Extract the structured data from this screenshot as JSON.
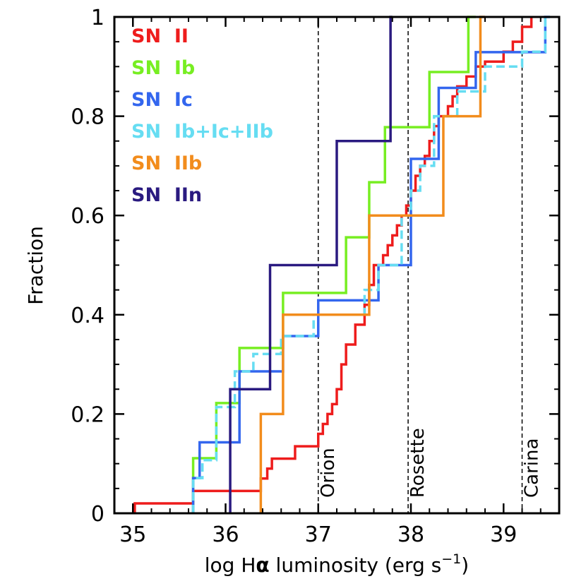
{
  "chart_data": {
    "type": "line",
    "subtype": "cumulative-step",
    "xlabel_prefix": "log H",
    "xlabel_symbol": "α",
    "xlabel_units": " luminosity (erg s",
    "xlabel_sup": "−1",
    "xlabel_close": ")",
    "ylabel": "Fraction",
    "xlim": [
      34.8,
      39.6
    ],
    "ylim": [
      0,
      1
    ],
    "x_ticks": [
      35,
      36,
      37,
      38,
      39
    ],
    "x_tick_labels": [
      "35",
      "36",
      "37",
      "38",
      "39"
    ],
    "y_ticks": [
      0,
      0.2,
      0.4,
      0.6,
      0.8,
      1
    ],
    "y_tick_labels": [
      "0",
      "0.2",
      "0.4",
      "0.6",
      "0.8",
      "1"
    ],
    "reference_lines": [
      {
        "name": "Orion",
        "x": 37.0
      },
      {
        "name": "Rosette",
        "x": 37.97
      },
      {
        "name": "Carina",
        "x": 39.2
      }
    ],
    "legend_position": "top-left",
    "series": [
      {
        "name": "SN  II",
        "color": "#ee1c1c",
        "dashed": false,
        "x": [
          35.02,
          35.65,
          36.38,
          36.45,
          36.5,
          36.75,
          37.0,
          37.05,
          37.1,
          37.15,
          37.2,
          37.25,
          37.3,
          37.4,
          37.5,
          37.55,
          37.6,
          37.7,
          37.75,
          37.8,
          37.85,
          37.9,
          37.95,
          38.0,
          38.05,
          38.1,
          38.15,
          38.2,
          38.25,
          38.3,
          38.4,
          38.45,
          38.5,
          38.6,
          38.7,
          38.8,
          39.0,
          39.1,
          39.2,
          39.3
        ],
        "y": [
          0.02,
          0.045,
          0.07,
          0.09,
          0.11,
          0.135,
          0.16,
          0.18,
          0.2,
          0.22,
          0.25,
          0.3,
          0.34,
          0.38,
          0.42,
          0.46,
          0.5,
          0.52,
          0.54,
          0.56,
          0.58,
          0.6,
          0.62,
          0.65,
          0.68,
          0.7,
          0.72,
          0.75,
          0.78,
          0.8,
          0.82,
          0.84,
          0.86,
          0.88,
          0.9,
          0.91,
          0.93,
          0.95,
          0.98,
          1.0
        ]
      },
      {
        "name": "SN  Ib",
        "color": "#77ee22",
        "dashed": false,
        "x": [
          35.65,
          35.9,
          36.15,
          36.62,
          37.3,
          37.55,
          37.72,
          38.2,
          38.62,
          38.7
        ],
        "y": [
          0.111,
          0.222,
          0.333,
          0.444,
          0.556,
          0.667,
          0.778,
          0.889,
          1.0,
          1.0
        ]
      },
      {
        "name": "SN  Ic",
        "color": "#3366ee",
        "dashed": false,
        "x": [
          35.65,
          35.72,
          36.15,
          36.62,
          37.0,
          37.65,
          38.0,
          38.3,
          38.7,
          39.45,
          39.5
        ],
        "y": [
          0.071,
          0.143,
          0.286,
          0.357,
          0.429,
          0.5,
          0.714,
          0.857,
          0.929,
          1.0,
          1.0
        ]
      },
      {
        "name": "SN  Ib+Ic+IIb",
        "color": "#66ddf2",
        "dashed": true,
        "x": [
          35.65,
          35.75,
          35.9,
          36.1,
          36.3,
          36.6,
          36.95,
          37.5,
          37.65,
          37.9,
          38.0,
          38.1,
          38.25,
          38.5,
          38.8,
          39.2,
          39.45,
          39.5
        ],
        "y": [
          0.071,
          0.107,
          0.214,
          0.286,
          0.321,
          0.357,
          0.4,
          0.45,
          0.5,
          0.6,
          0.65,
          0.7,
          0.8,
          0.85,
          0.9,
          0.93,
          1.0,
          1.0
        ]
      },
      {
        "name": "SN  IIb",
        "color": "#f28c1c",
        "dashed": false,
        "x": [
          36.38,
          36.62,
          37.55,
          38.35,
          38.75,
          38.8
        ],
        "y": [
          0.2,
          0.4,
          0.6,
          0.8,
          1.0,
          1.0
        ]
      },
      {
        "name": "SN  IIn",
        "color": "#2a1a80",
        "dashed": false,
        "x": [
          36.05,
          36.48,
          37.2,
          37.78,
          37.8
        ],
        "y": [
          0.25,
          0.5,
          0.75,
          1.0,
          1.0
        ]
      }
    ]
  }
}
